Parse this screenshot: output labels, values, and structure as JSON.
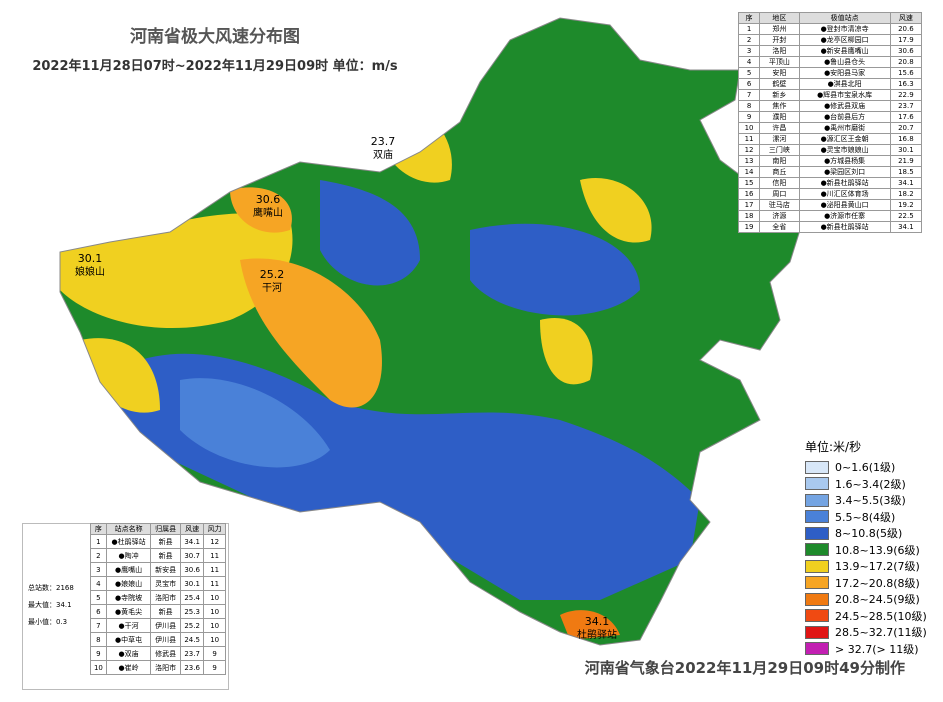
{
  "title": "河南省极大风速分布图",
  "subtitle": "2022年11月28日07时~2022年11月29日09时 单位：m/s",
  "footer": "河南省气象台2022年11月29日09时49分制作",
  "map_labels": [
    {
      "value": 23.7,
      "name": "双庙"
    },
    {
      "value": 30.6,
      "name": "鹰嘴山"
    },
    {
      "value": 30.1,
      "name": "娘娘山"
    },
    {
      "value": 25.2,
      "name": "干河"
    },
    {
      "value": 34.1,
      "name": "杜鹃驿站"
    }
  ],
  "legend": {
    "title": "单位:米/秒",
    "items": [
      {
        "label": "0~1.6(1级)",
        "color": "#d8e7f8"
      },
      {
        "label": "1.6~3.4(2级)",
        "color": "#a9c9ef"
      },
      {
        "label": "3.4~5.5(3级)",
        "color": "#74a4e2"
      },
      {
        "label": "5.5~8(4级)",
        "color": "#4a81d8"
      },
      {
        "label": "8~10.8(5级)",
        "color": "#2e5ec6"
      },
      {
        "label": "10.8~13.9(6级)",
        "color": "#1e8a2b"
      },
      {
        "label": "13.9~17.2(7级)",
        "color": "#f0d020"
      },
      {
        "label": "17.2~20.8(8级)",
        "color": "#f6a524"
      },
      {
        "label": "20.8~24.5(9级)",
        "color": "#f07a12"
      },
      {
        "label": "24.5~28.5(10级)",
        "color": "#f04a12"
      },
      {
        "label": "28.5~32.7(11级)",
        "color": "#e01414"
      },
      {
        "label": "> 32.7(> 11级)",
        "color": "#c21fb2"
      }
    ]
  },
  "city_table": {
    "headers": [
      "序",
      "地区",
      "极值站点",
      "风速"
    ],
    "rows": [
      [
        1,
        "郑州",
        "●登封市清凉寺",
        20.6
      ],
      [
        2,
        "开封",
        "●龙亭区柳园口",
        17.9
      ],
      [
        3,
        "洛阳",
        "●新安县鹰嘴山",
        30.6
      ],
      [
        4,
        "平顶山",
        "●鲁山县仓头",
        20.8
      ],
      [
        5,
        "安阳",
        "●安阳县马家",
        15.6
      ],
      [
        6,
        "鹤壁",
        "●淇县北阳",
        16.3
      ],
      [
        7,
        "新乡",
        "●辉县市宝泉水库",
        22.9
      ],
      [
        8,
        "焦作",
        "●修武县双庙",
        23.7
      ],
      [
        9,
        "濮阳",
        "●台前县后方",
        17.6
      ],
      [
        10,
        "许昌",
        "●禹州市磨街",
        20.7
      ],
      [
        11,
        "漯河",
        "●源汇区王金朝",
        16.8
      ],
      [
        12,
        "三门峡",
        "●灵宝市娘娘山",
        30.1
      ],
      [
        13,
        "南阳",
        "●方城县杨集",
        21.9
      ],
      [
        14,
        "商丘",
        "●梁园区刘口",
        18.5
      ],
      [
        15,
        "信阳",
        "●新县杜鹃驿站",
        34.1
      ],
      [
        16,
        "周口",
        "●川汇区体育场",
        18.2
      ],
      [
        17,
        "驻马店",
        "●泌阳县黄山口",
        19.2
      ],
      [
        18,
        "济源",
        "●济源市任寨",
        22.5
      ],
      [
        19,
        "全省",
        "●新县杜鹃驿站",
        34.1
      ]
    ]
  },
  "station_table": {
    "headers": [
      "序",
      "站点名称",
      "归属县",
      "风速",
      "风力"
    ],
    "rows": [
      [
        1,
        "●杜鹃驿站",
        "新县",
        34.1,
        12
      ],
      [
        2,
        "●陶冲",
        "新县",
        30.7,
        11
      ],
      [
        3,
        "●鹰嘴山",
        "新安县",
        30.6,
        11
      ],
      [
        4,
        "●娘娘山",
        "灵宝市",
        30.1,
        11
      ],
      [
        5,
        "●寺院坡",
        "洛阳市",
        25.4,
        10
      ],
      [
        6,
        "●黄毛尖",
        "新县",
        25.3,
        10
      ],
      [
        7,
        "●干河",
        "伊川县",
        25.2,
        10
      ],
      [
        8,
        "●中草屯",
        "伊川县",
        24.5,
        10
      ],
      [
        9,
        "●双庙",
        "修武县",
        23.7,
        9
      ],
      [
        10,
        "●崔岭",
        "洛阳市",
        23.6,
        9
      ]
    ]
  },
  "stats": [
    "总站数：2168",
    "最大值：34.1",
    "最小值：0.3"
  ]
}
